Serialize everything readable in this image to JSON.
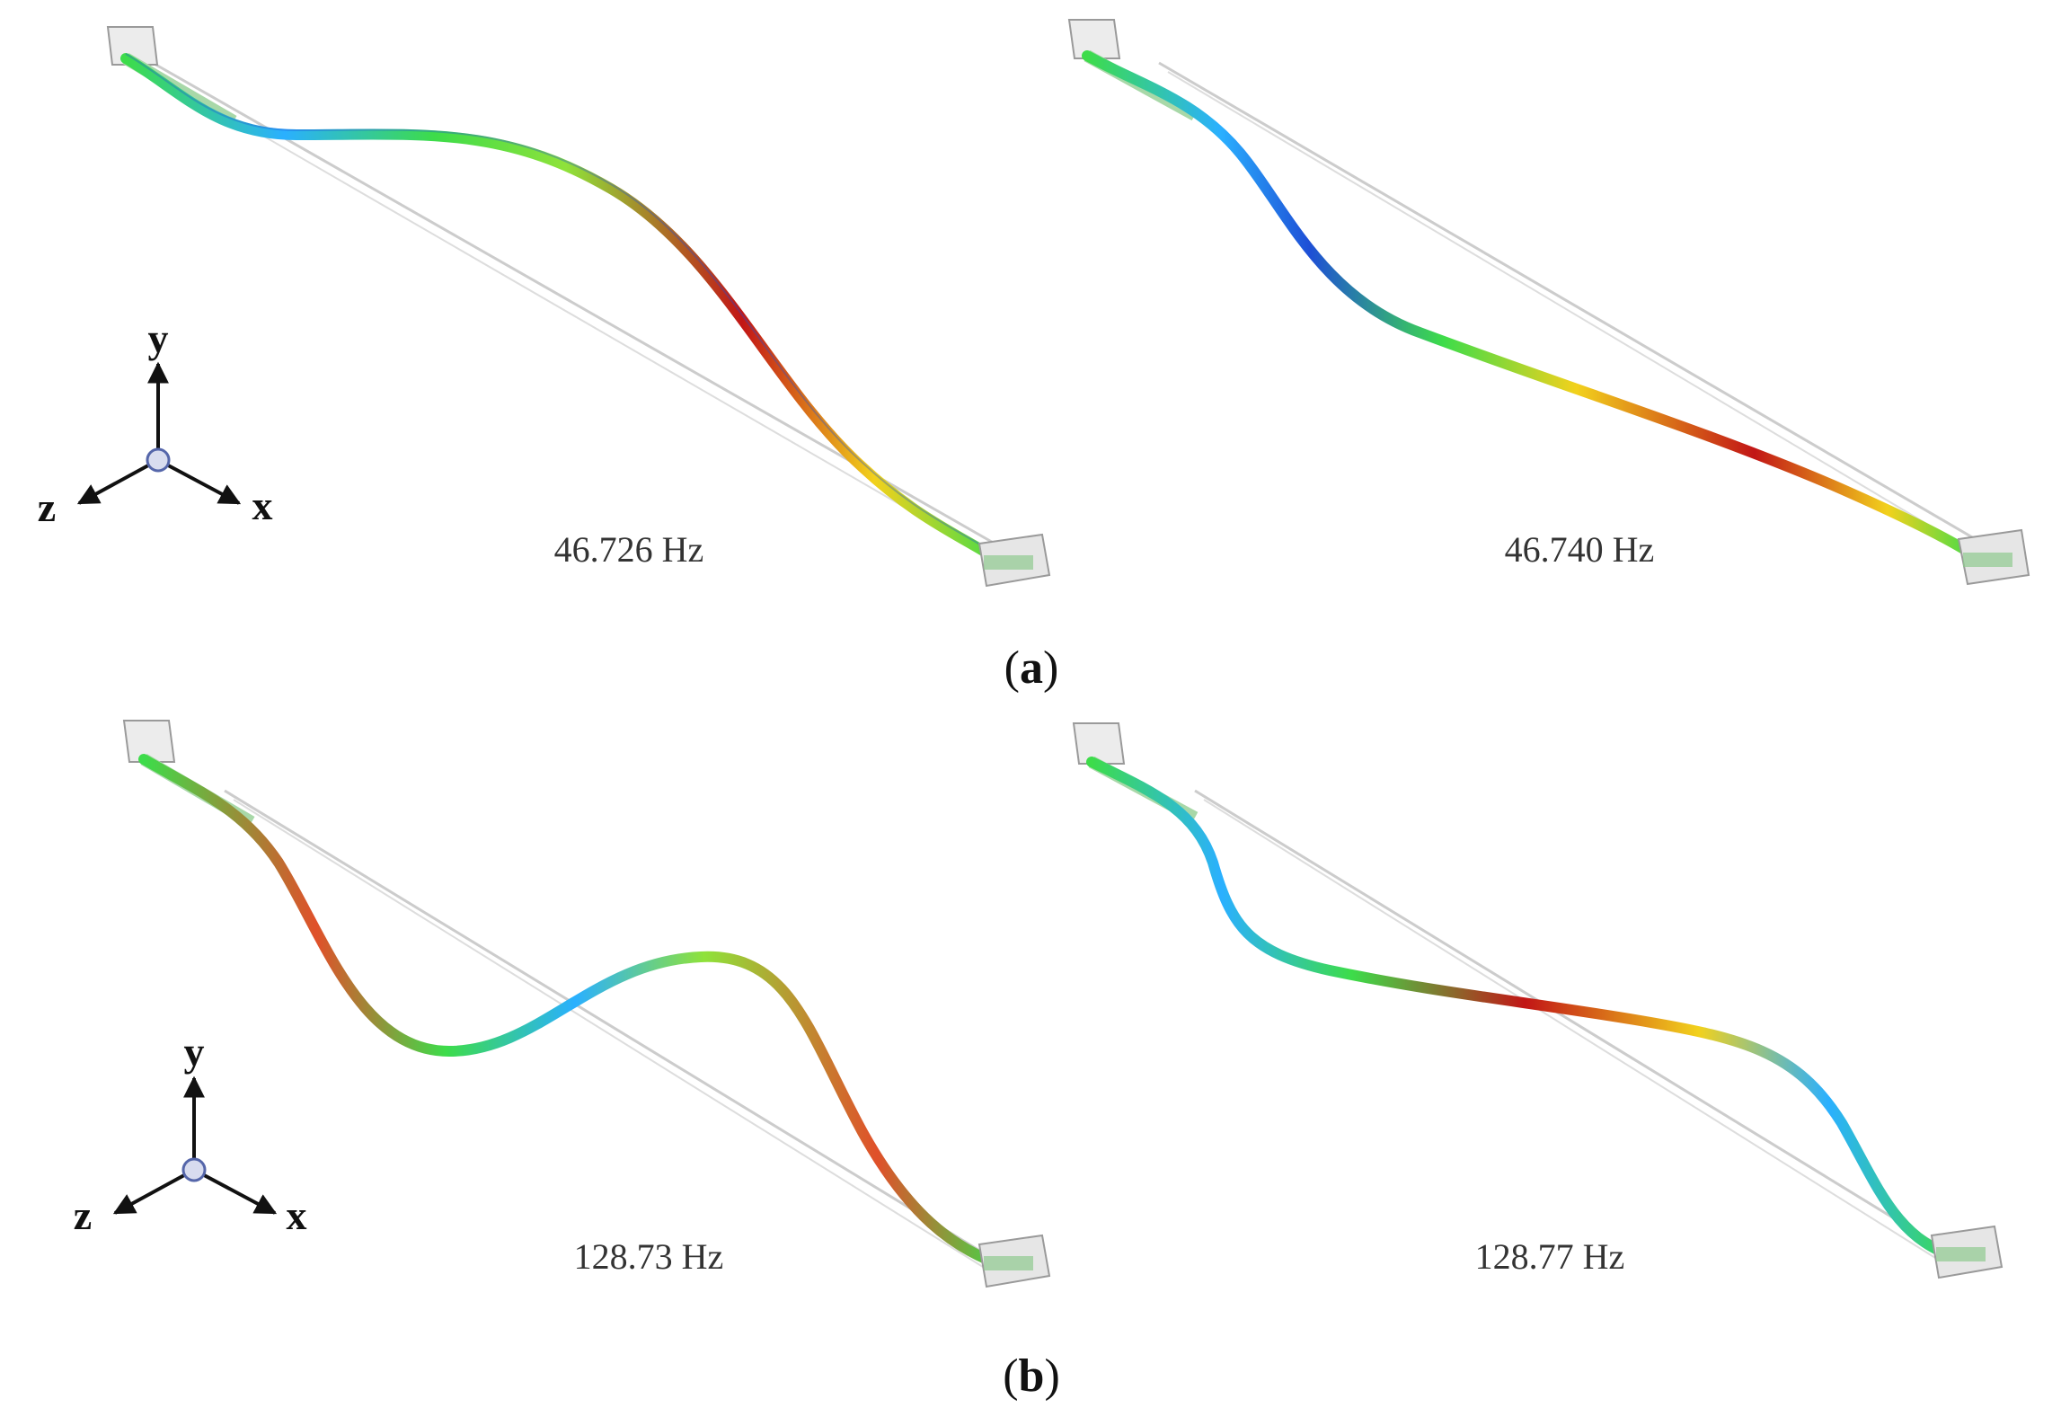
{
  "figure": {
    "panels": [
      {
        "caption_letter": "a",
        "modes": [
          {
            "frequency_label": "46.726 Hz",
            "color_bands": [
              "#1e4fd6",
              "#2ab0ff",
              "#3ddc4a",
              "#8fe23a",
              "#f2d11c",
              "#e0502a",
              "#c21616"
            ]
          },
          {
            "frequency_label": "46.740 Hz",
            "color_bands": [
              "#1e4fd6",
              "#2ab0ff",
              "#3ddc4a",
              "#8fe23a",
              "#f2d11c",
              "#e0502a",
              "#c21616"
            ]
          }
        ]
      },
      {
        "caption_letter": "b",
        "modes": [
          {
            "frequency_label": "128.73 Hz",
            "color_bands": [
              "#1e4fd6",
              "#2ab0ff",
              "#3ddc4a",
              "#8fe23a",
              "#f2d11c",
              "#e0502a",
              "#c21616"
            ]
          },
          {
            "frequency_label": "128.77 Hz",
            "color_bands": [
              "#1e4fd6",
              "#2ab0ff",
              "#3ddc4a",
              "#8fe23a",
              "#f2d11c",
              "#e0502a",
              "#c21616"
            ]
          }
        ]
      }
    ],
    "axes_triad": {
      "x_label": "x",
      "y_label": "y",
      "z_label": "z"
    },
    "caption_open": "(",
    "caption_close": ")",
    "colors": {
      "undeformed_line": "#c8c8c8",
      "support_fill": "#e6e6e6",
      "support_stroke": "#9a9a9a",
      "support_inner": "#8fc98f"
    }
  }
}
